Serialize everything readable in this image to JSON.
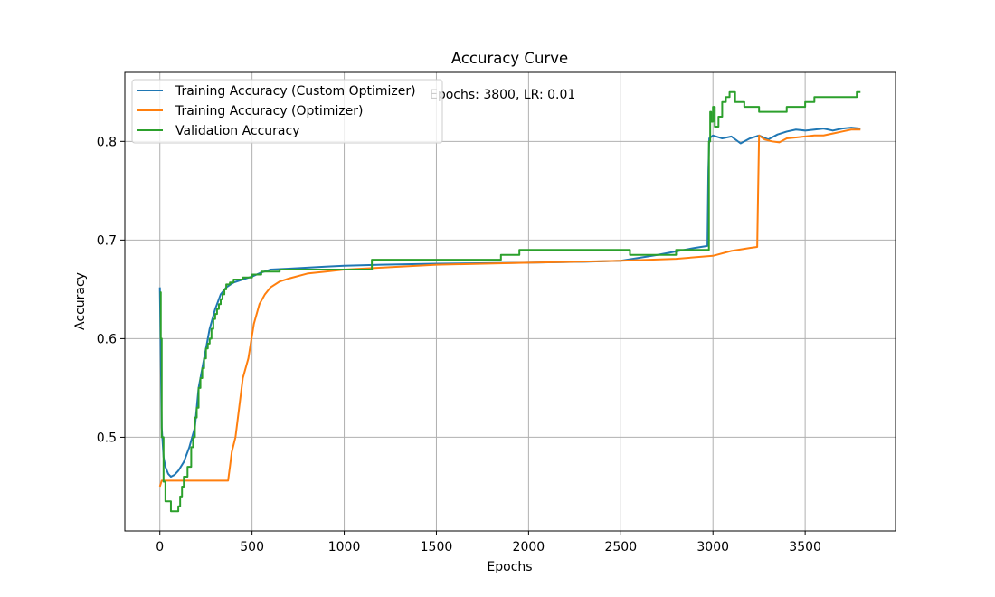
{
  "chart_data": {
    "type": "line",
    "title": "Accuracy Curve",
    "xlabel": "Epochs",
    "ylabel": "Accuracy",
    "xlim": [
      -190,
      3990
    ],
    "ylim": [
      0.405,
      0.87
    ],
    "xticks": [
      0,
      500,
      1000,
      1500,
      2000,
      2500,
      3000,
      3500
    ],
    "yticks": [
      0.5,
      0.6,
      0.7,
      0.8
    ],
    "xtick_labels": [
      "0",
      "500",
      "1000",
      "1500",
      "2000",
      "2500",
      "3000",
      "3500"
    ],
    "ytick_labels": [
      "0.5",
      "0.6",
      "0.7",
      "0.8"
    ],
    "grid": true,
    "legend_position": "upper-left",
    "annotation": "Epochs: 3800, LR: 0.01",
    "series": [
      {
        "name": "Training Accuracy (Custom Optimizer)",
        "color": "#1f77b4",
        "step": false,
        "x": [
          0,
          5,
          10,
          20,
          30,
          45,
          60,
          80,
          100,
          130,
          160,
          190,
          210,
          240,
          270,
          300,
          330,
          360,
          400,
          450,
          500,
          550,
          600,
          700,
          800,
          900,
          1000,
          1200,
          1500,
          2000,
          2300,
          2500,
          2700,
          2900,
          2970,
          2975,
          2980,
          3000,
          3050,
          3100,
          3150,
          3200,
          3250,
          3300,
          3350,
          3400,
          3450,
          3500,
          3550,
          3600,
          3650,
          3700,
          3750,
          3800
        ],
        "y": [
          0.652,
          0.58,
          0.51,
          0.48,
          0.47,
          0.463,
          0.46,
          0.462,
          0.466,
          0.475,
          0.49,
          0.51,
          0.55,
          0.58,
          0.61,
          0.63,
          0.645,
          0.652,
          0.657,
          0.66,
          0.663,
          0.667,
          0.67,
          0.671,
          0.672,
          0.673,
          0.674,
          0.675,
          0.676,
          0.677,
          0.678,
          0.679,
          0.685,
          0.692,
          0.694,
          0.77,
          0.803,
          0.806,
          0.803,
          0.805,
          0.798,
          0.803,
          0.806,
          0.802,
          0.807,
          0.81,
          0.812,
          0.811,
          0.812,
          0.813,
          0.811,
          0.813,
          0.814,
          0.813
        ]
      },
      {
        "name": "Training Accuracy (Optimizer)",
        "color": "#ff7f0e",
        "step": false,
        "x": [
          0,
          10,
          20,
          100,
          200,
          300,
          370,
          380,
          390,
          410,
          430,
          450,
          480,
          510,
          540,
          570,
          600,
          650,
          700,
          800,
          900,
          1000,
          1200,
          1500,
          2000,
          2500,
          2800,
          3000,
          3100,
          3200,
          3240,
          3245,
          3250,
          3280,
          3320,
          3360,
          3400,
          3450,
          3500,
          3550,
          3600,
          3650,
          3700,
          3750,
          3800
        ],
        "y": [
          0.45,
          0.456,
          0.456,
          0.456,
          0.456,
          0.456,
          0.456,
          0.47,
          0.485,
          0.5,
          0.53,
          0.56,
          0.58,
          0.615,
          0.635,
          0.645,
          0.652,
          0.658,
          0.661,
          0.666,
          0.668,
          0.67,
          0.672,
          0.675,
          0.677,
          0.679,
          0.681,
          0.684,
          0.689,
          0.692,
          0.693,
          0.75,
          0.806,
          0.802,
          0.8,
          0.799,
          0.803,
          0.804,
          0.805,
          0.806,
          0.806,
          0.808,
          0.81,
          0.812,
          0.812
        ]
      },
      {
        "name": "Validation Accuracy",
        "color": "#2ca02c",
        "step": true,
        "x": [
          0,
          5,
          10,
          20,
          30,
          60,
          90,
          100,
          110,
          120,
          130,
          150,
          170,
          180,
          190,
          200,
          210,
          220,
          230,
          240,
          250,
          260,
          270,
          280,
          290,
          300,
          310,
          320,
          330,
          340,
          350,
          360,
          380,
          400,
          420,
          450,
          500,
          550,
          650,
          800,
          900,
          1000,
          1150,
          1400,
          1600,
          1850,
          1950,
          2200,
          2400,
          2550,
          2700,
          2800,
          2880,
          2960,
          2978,
          2985,
          2990,
          3000,
          3010,
          3030,
          3050,
          3070,
          3090,
          3120,
          3170,
          3200,
          3250,
          3300,
          3350,
          3400,
          3450,
          3500,
          3550,
          3600,
          3650,
          3700,
          3750,
          3780,
          3800
        ],
        "y": [
          0.647,
          0.6,
          0.5,
          0.455,
          0.435,
          0.425,
          0.425,
          0.43,
          0.44,
          0.45,
          0.46,
          0.47,
          0.49,
          0.5,
          0.52,
          0.53,
          0.55,
          0.56,
          0.57,
          0.58,
          0.59,
          0.595,
          0.6,
          0.61,
          0.62,
          0.625,
          0.63,
          0.635,
          0.64,
          0.645,
          0.65,
          0.655,
          0.657,
          0.66,
          0.66,
          0.662,
          0.665,
          0.668,
          0.67,
          0.67,
          0.67,
          0.67,
          0.68,
          0.68,
          0.68,
          0.685,
          0.69,
          0.69,
          0.69,
          0.685,
          0.685,
          0.69,
          0.69,
          0.69,
          0.8,
          0.83,
          0.82,
          0.835,
          0.815,
          0.825,
          0.84,
          0.845,
          0.85,
          0.84,
          0.835,
          0.835,
          0.83,
          0.83,
          0.83,
          0.835,
          0.835,
          0.84,
          0.845,
          0.845,
          0.845,
          0.845,
          0.845,
          0.85,
          0.85
        ]
      }
    ]
  }
}
